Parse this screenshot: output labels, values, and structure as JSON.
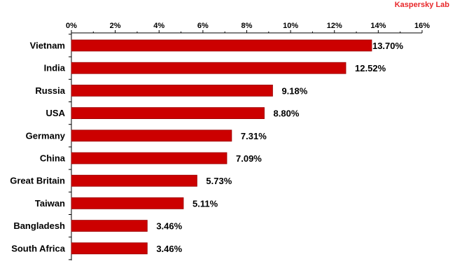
{
  "brand": {
    "watermark": "Kaspersky Lab"
  },
  "colors": {
    "bar": "#cc0000",
    "bar_stroke": "#990000",
    "axis": "#000000",
    "watermark": "#e8272a"
  },
  "chart_data": {
    "type": "bar",
    "orientation": "horizontal",
    "categories": [
      "Vietnam",
      "India",
      "Russia",
      "USA",
      "Germany",
      "China",
      "Great Britain",
      "Taiwan",
      "Bangladesh",
      "South Africa"
    ],
    "values": [
      13.7,
      12.52,
      9.18,
      8.8,
      7.31,
      7.09,
      5.73,
      5.11,
      3.46,
      3.46
    ],
    "value_labels": [
      "13.70%",
      "12.52%",
      "9.18%",
      "8.80%",
      "7.31%",
      "7.09%",
      "5.73%",
      "5.11%",
      "3.46%",
      "3.46%"
    ],
    "title": "",
    "xlabel": "",
    "ylabel": "",
    "xlim": [
      0,
      16
    ],
    "ticks": [
      0,
      2,
      4,
      6,
      8,
      10,
      12,
      14,
      16
    ],
    "tick_labels": [
      "0%",
      "2%",
      "4%",
      "6%",
      "8%",
      "10%",
      "12%",
      "14%",
      "16%"
    ],
    "axis_position": "top",
    "grid": false,
    "legend": "none"
  }
}
